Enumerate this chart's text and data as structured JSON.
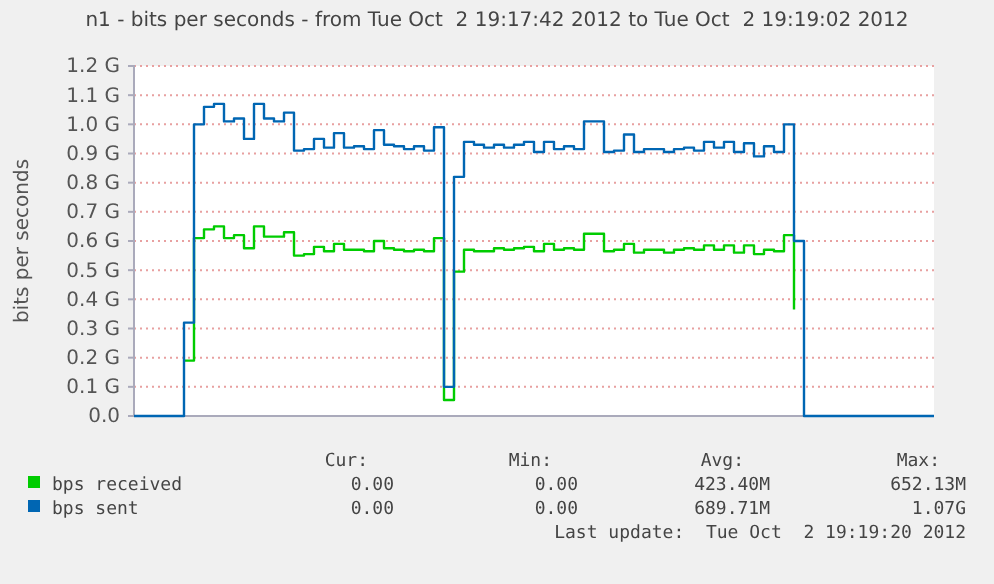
{
  "chart_data": {
    "type": "step",
    "title": "n1 - bits per seconds - from Tue Oct  2 19:17:42 2012 to Tue Oct  2 19:19:02 2012",
    "ylabel": "bits per seconds",
    "categories": [
      null,
      null,
      null,
      null,
      null,
      null,
      null,
      null,
      null,
      null,
      null,
      null,
      null,
      null,
      null,
      null,
      null,
      null,
      null,
      null,
      null,
      null,
      null,
      null,
      null,
      null,
      null,
      null,
      null,
      null,
      null,
      null,
      null,
      null,
      null,
      null,
      null,
      null,
      null,
      null,
      null,
      null,
      null,
      null,
      null,
      null,
      null,
      null,
      null,
      null,
      null,
      null,
      null,
      null,
      null,
      null,
      null,
      null,
      null,
      null,
      null,
      null,
      null,
      null,
      null,
      null,
      null,
      null,
      null,
      null,
      null,
      null,
      null,
      null,
      null,
      null,
      null,
      null,
      null,
      null,
      null
    ],
    "ylim": [
      0,
      1.2
    ],
    "yticks": [
      {
        "value": 0,
        "label": "0.0"
      },
      {
        "value": 0.1,
        "label": "0.1 G"
      },
      {
        "value": 0.2,
        "label": "0.2 G"
      },
      {
        "value": 0.3,
        "label": "0.3 G"
      },
      {
        "value": 0.4,
        "label": "0.4 G"
      },
      {
        "value": 0.5,
        "label": "0.5 G"
      },
      {
        "value": 0.6,
        "label": "0.6 G"
      },
      {
        "value": 0.7,
        "label": "0.7 G"
      },
      {
        "value": 0.8,
        "label": "0.8 G"
      },
      {
        "value": 0.9,
        "label": "0.9 G"
      },
      {
        "value": 1.0,
        "label": "1.0 G"
      },
      {
        "value": 1.1,
        "label": "1.1 G"
      },
      {
        "value": 1.2,
        "label": "1.2 G"
      }
    ],
    "grid": "y",
    "legend": "bottom",
    "series": [
      {
        "name": "bps received",
        "color": "#00cc00",
        "values": [
          null,
          null,
          null,
          null,
          null,
          0.19,
          0.61,
          0.64,
          0.65,
          0.61,
          0.62,
          0.575,
          0.65,
          0.615,
          0.615,
          0.63,
          0.55,
          0.555,
          0.58,
          0.565,
          0.59,
          0.57,
          0.57,
          0.565,
          0.6,
          0.575,
          0.57,
          0.565,
          0.57,
          0.565,
          0.61,
          0.055,
          0.495,
          0.57,
          0.565,
          0.565,
          0.575,
          0.57,
          0.575,
          0.58,
          0.565,
          0.59,
          0.57,
          0.575,
          0.57,
          0.625,
          0.625,
          0.565,
          0.57,
          0.59,
          0.56,
          0.57,
          0.57,
          0.56,
          0.57,
          0.575,
          0.57,
          0.585,
          0.57,
          0.585,
          0.56,
          0.585,
          0.555,
          0.57,
          0.565,
          0.62,
          0.365,
          null,
          null,
          null,
          null,
          null,
          null,
          null,
          null,
          null,
          null,
          null,
          null,
          null,
          null
        ]
      },
      {
        "name": "bps sent",
        "color": "#0066b3",
        "values": [
          0,
          0,
          0,
          0,
          0,
          0.32,
          1.0,
          1.06,
          1.07,
          1.01,
          1.02,
          0.95,
          1.07,
          1.02,
          1.01,
          1.04,
          0.91,
          0.915,
          0.95,
          0.92,
          0.97,
          0.92,
          0.925,
          0.915,
          0.98,
          0.93,
          0.925,
          0.915,
          0.925,
          0.91,
          0.99,
          0.1,
          0.82,
          0.94,
          0.93,
          0.92,
          0.93,
          0.92,
          0.93,
          0.94,
          0.905,
          0.94,
          0.915,
          0.925,
          0.915,
          1.01,
          1.01,
          0.905,
          0.91,
          0.965,
          0.905,
          0.915,
          0.915,
          0.905,
          0.915,
          0.92,
          0.91,
          0.94,
          0.92,
          0.94,
          0.905,
          0.935,
          0.89,
          0.925,
          0.905,
          1.0,
          0.6,
          0,
          0,
          0,
          0,
          0,
          0,
          0,
          0,
          0,
          0,
          0,
          0,
          0,
          0
        ]
      }
    ],
    "annotations": [
      "Cur:",
      "Min:",
      "Avg:",
      "Max:",
      "0.00",
      "0.00",
      "423.40M",
      "652.13M",
      "0.00",
      "0.00",
      "689.71M",
      "1.07G",
      "Last update:  Tue Oct  2 19:19:20 2012"
    ]
  }
}
